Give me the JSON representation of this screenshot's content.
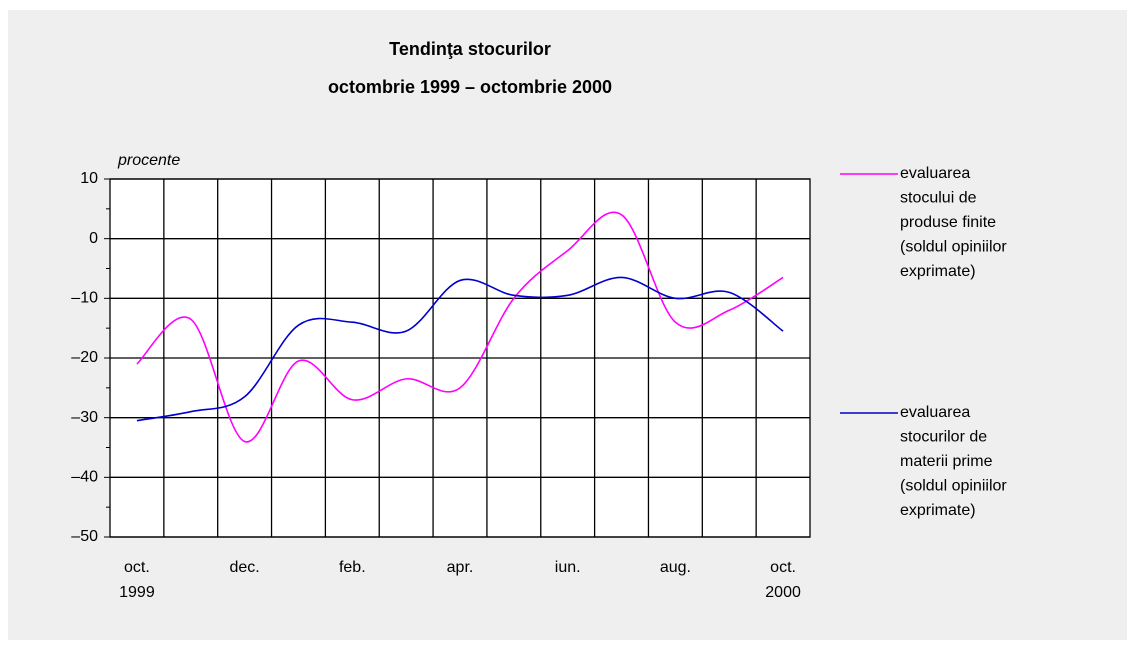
{
  "chart_data": {
    "type": "line",
    "title": "Tendinţa stocurilor",
    "subtitle": "octombrie 1999 – octombrie 2000",
    "y_axis_label": "procente",
    "categories": [
      "oct.\n1999",
      null,
      "dec.",
      null,
      "feb.",
      null,
      "apr.",
      null,
      "iun.",
      null,
      "aug.",
      null,
      "oct.\n2000"
    ],
    "series": [
      {
        "name": "evaluarea\nstocului de\nproduse finite\n(soldul opiniilor\nexprimate)",
        "color": "#ff00ff",
        "values": [
          -21,
          -13.5,
          -34,
          -20.5,
          -27,
          -23.5,
          -25,
          -10,
          -2,
          4,
          -14,
          -12,
          -6.5
        ]
      },
      {
        "name": "evaluarea\nstocurilor de\nmaterii prime\n(soldul opiniilor\nexprimate)",
        "color": "#0000cc",
        "values": [
          -30.5,
          -29,
          -26.5,
          -14.5,
          -14,
          -15.5,
          -7,
          -9.5,
          -9.5,
          -6.5,
          -10,
          -9,
          -15.5
        ]
      }
    ],
    "ylim": [
      -50,
      10
    ],
    "yticks": [
      10,
      0,
      {
        "value": -10,
        "label": "–10"
      },
      {
        "value": -20,
        "label": "–20"
      },
      {
        "value": -30,
        "label": "–30"
      },
      {
        "value": -40,
        "label": "–40"
      },
      {
        "value": -50,
        "label": "–50"
      }
    ],
    "yticks_minor": [
      5,
      -5,
      -15,
      -25,
      -35,
      -45
    ],
    "grid": true,
    "legend": "right"
  }
}
